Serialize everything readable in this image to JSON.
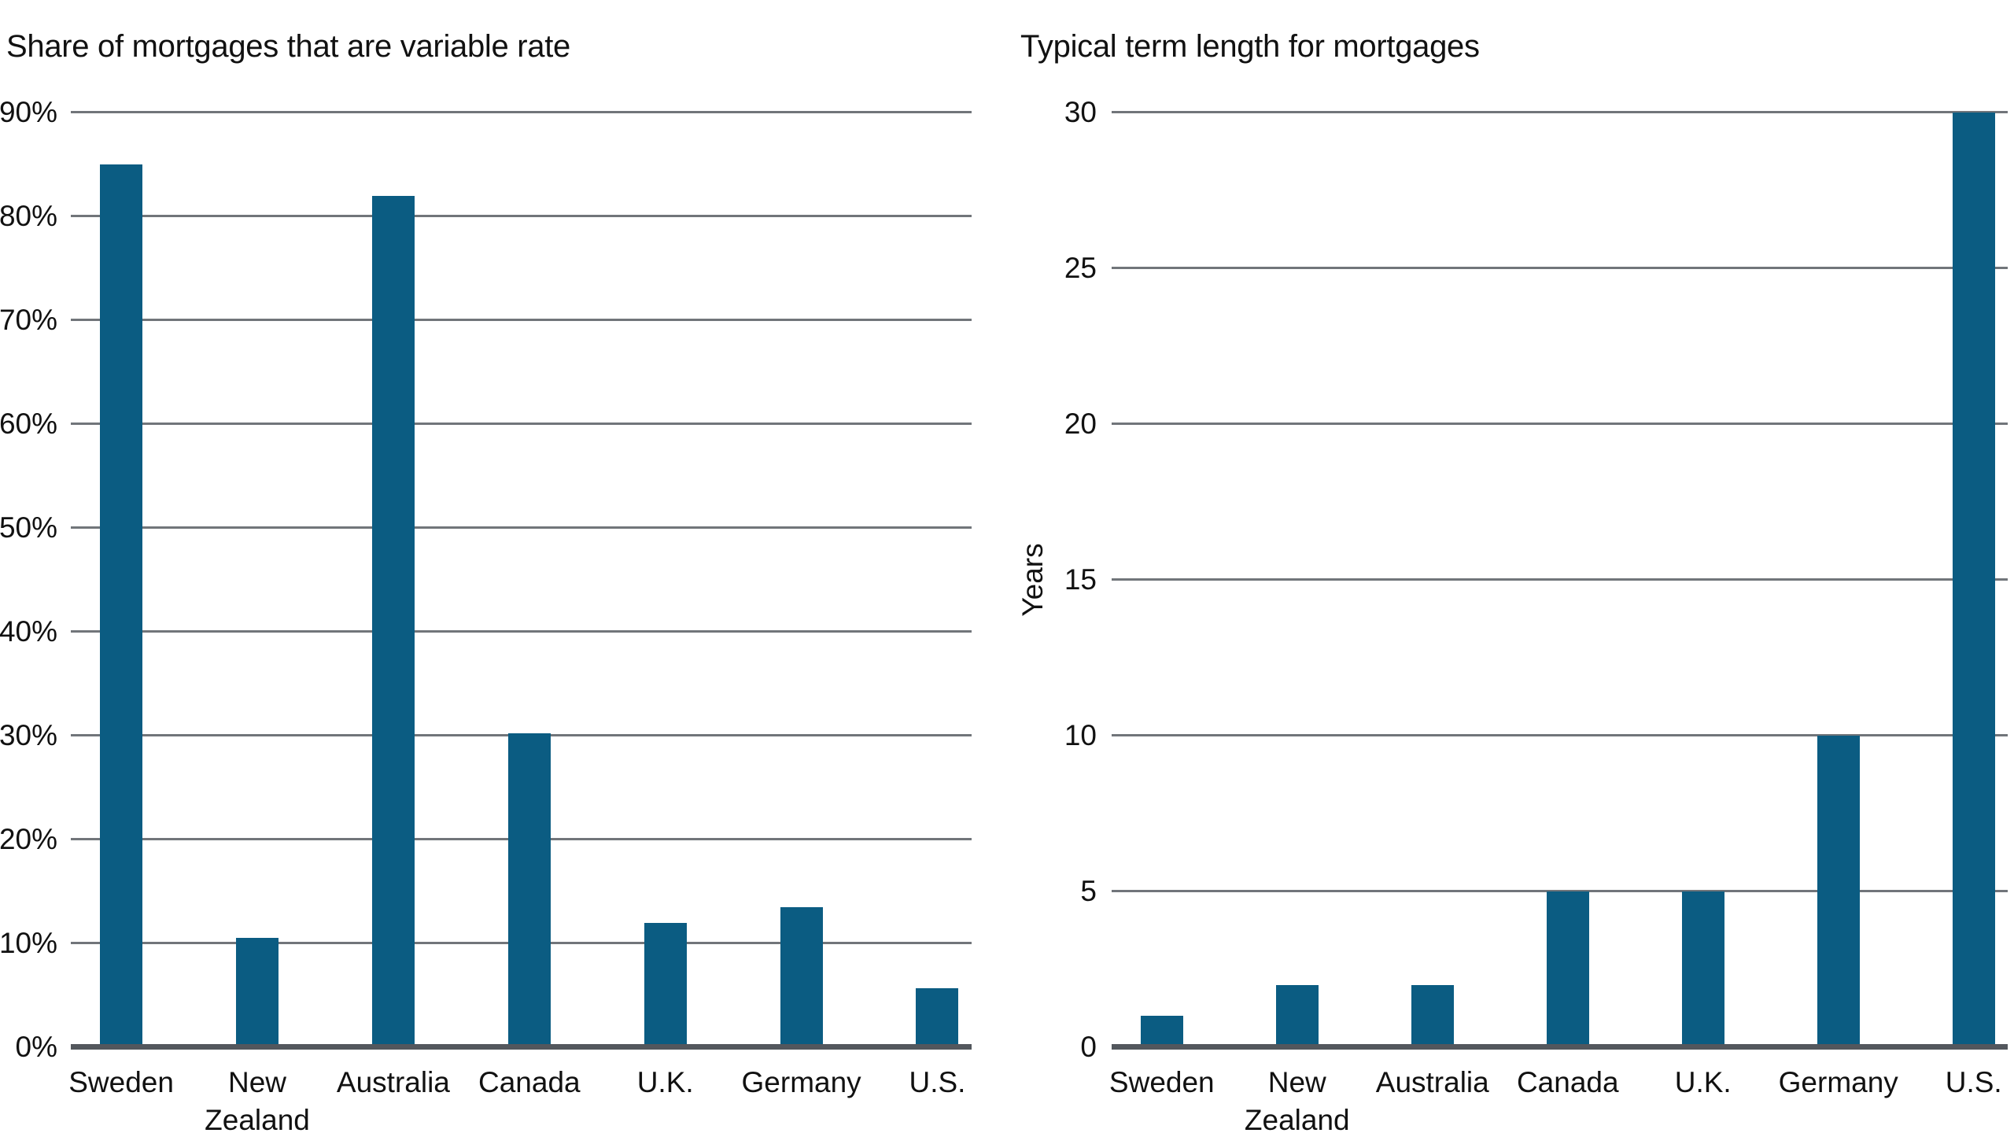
{
  "page": {
    "background": "#ffffff"
  },
  "colors": {
    "bar": "#0b5c82",
    "gridline": "#71757a",
    "baseline": "#53575d",
    "text": "#111111"
  },
  "chart_data": [
    {
      "type": "bar",
      "title": "Share of mortgages that are variable rate",
      "categories": [
        "Sweden",
        "New Zealand",
        "Australia",
        "Canada",
        "U.K.",
        "Germany",
        "U.S."
      ],
      "values": [
        85,
        10.5,
        82,
        30.2,
        12,
        13.5,
        5.7
      ],
      "xlabel": "",
      "ylabel": "",
      "ylim": [
        0,
        90
      ],
      "ytick_step": 10,
      "ytick_suffix": "%",
      "grid": true,
      "legend": "none",
      "bar_color": "#0b5c82"
    },
    {
      "type": "bar",
      "title": "Typical term length for mortgages",
      "categories": [
        "Sweden",
        "New Zealand",
        "Australia",
        "Canada",
        "U.K.",
        "Germany",
        "U.S."
      ],
      "values": [
        1,
        2,
        2,
        5,
        5,
        10,
        30
      ],
      "xlabel": "",
      "ylabel": "Years",
      "ylim": [
        0,
        30
      ],
      "ytick_step": 5,
      "ytick_suffix": "",
      "grid": true,
      "legend": "none",
      "bar_color": "#0b5c82"
    }
  ]
}
